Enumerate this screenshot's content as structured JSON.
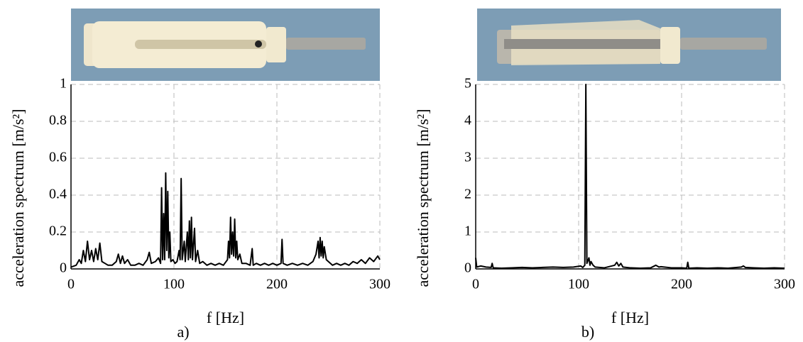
{
  "chart_data": [
    {
      "type": "line",
      "label": "a)",
      "xlabel": "f [Hz]",
      "ylabel": "acceleration spectrum [m/s²]",
      "xlim": [
        0,
        300
      ],
      "ylim": [
        0,
        1
      ],
      "xticks": [
        0,
        100,
        200,
        300
      ],
      "yticks": [
        0,
        0.2,
        0.4,
        0.6,
        0.8,
        1
      ],
      "grid": true,
      "x": [
        0,
        5,
        8,
        10,
        12,
        14,
        16,
        18,
        20,
        22,
        24,
        26,
        28,
        30,
        33,
        36,
        40,
        44,
        46,
        48,
        50,
        52,
        55,
        58,
        62,
        66,
        70,
        74,
        76,
        78,
        82,
        85,
        87,
        88,
        89,
        90,
        91,
        92,
        93,
        94,
        95,
        96,
        97,
        99,
        101,
        103,
        105,
        106,
        107,
        108,
        110,
        111,
        113,
        114,
        115,
        116,
        117,
        118,
        120,
        121,
        123,
        125,
        128,
        132,
        136,
        140,
        144,
        148,
        152,
        153,
        154,
        155,
        156,
        157,
        158,
        159,
        160,
        161,
        162,
        164,
        166,
        170,
        174,
        176,
        177,
        180,
        184,
        188,
        192,
        196,
        200,
        204,
        205,
        206,
        210,
        215,
        220,
        225,
        230,
        235,
        238,
        240,
        241,
        242,
        243,
        244,
        245,
        246,
        248,
        250,
        254,
        258,
        262,
        266,
        270,
        274,
        278,
        282,
        286,
        290,
        294,
        298,
        300
      ],
      "series": [
        {
          "color": "#000000",
          "values": [
            0.01,
            0.02,
            0.05,
            0.03,
            0.1,
            0.04,
            0.15,
            0.05,
            0.1,
            0.04,
            0.11,
            0.05,
            0.14,
            0.04,
            0.03,
            0.02,
            0.02,
            0.04,
            0.08,
            0.03,
            0.07,
            0.03,
            0.05,
            0.02,
            0.02,
            0.03,
            0.02,
            0.05,
            0.09,
            0.03,
            0.04,
            0.06,
            0.03,
            0.44,
            0.05,
            0.3,
            0.05,
            0.52,
            0.1,
            0.42,
            0.06,
            0.2,
            0.04,
            0.05,
            0.03,
            0.04,
            0.1,
            0.05,
            0.49,
            0.05,
            0.15,
            0.04,
            0.2,
            0.05,
            0.26,
            0.06,
            0.28,
            0.05,
            0.22,
            0.04,
            0.1,
            0.03,
            0.04,
            0.02,
            0.03,
            0.02,
            0.03,
            0.02,
            0.05,
            0.15,
            0.06,
            0.28,
            0.08,
            0.2,
            0.07,
            0.27,
            0.06,
            0.15,
            0.05,
            0.08,
            0.03,
            0.03,
            0.02,
            0.11,
            0.02,
            0.03,
            0.02,
            0.03,
            0.02,
            0.03,
            0.02,
            0.03,
            0.16,
            0.03,
            0.02,
            0.03,
            0.02,
            0.03,
            0.02,
            0.04,
            0.08,
            0.15,
            0.06,
            0.17,
            0.07,
            0.15,
            0.06,
            0.12,
            0.05,
            0.04,
            0.02,
            0.03,
            0.02,
            0.03,
            0.02,
            0.04,
            0.03,
            0.05,
            0.03,
            0.06,
            0.04,
            0.07,
            0.05
          ]
        }
      ]
    },
    {
      "type": "line",
      "label": "b)",
      "xlabel": "f [Hz]",
      "ylabel": "acceleration spectrum [m/s²]",
      "xlim": [
        0,
        300
      ],
      "ylim": [
        0,
        5
      ],
      "xticks": [
        0,
        100,
        200,
        300
      ],
      "yticks": [
        0,
        1,
        2,
        3,
        4,
        5
      ],
      "grid": true,
      "x": [
        0,
        1,
        5,
        10,
        15,
        16,
        17,
        25,
        35,
        45,
        55,
        65,
        75,
        85,
        95,
        102,
        104,
        106,
        107,
        108,
        110,
        111,
        112,
        114,
        116,
        125,
        135,
        137,
        139,
        141,
        143,
        150,
        160,
        170,
        175,
        178,
        180,
        190,
        200,
        205,
        206,
        207,
        215,
        225,
        235,
        245,
        258,
        260,
        262,
        270,
        280,
        290,
        300
      ],
      "series": [
        {
          "color": "#000000",
          "values": [
            0.3,
            0.05,
            0.08,
            0.05,
            0.04,
            0.15,
            0.03,
            0.02,
            0.03,
            0.04,
            0.03,
            0.04,
            0.05,
            0.04,
            0.05,
            0.08,
            0.04,
            0.1,
            5.0,
            0.15,
            0.3,
            0.1,
            0.2,
            0.1,
            0.05,
            0.03,
            0.1,
            0.18,
            0.08,
            0.15,
            0.05,
            0.03,
            0.02,
            0.03,
            0.1,
            0.05,
            0.06,
            0.03,
            0.03,
            0.02,
            0.18,
            0.02,
            0.03,
            0.02,
            0.03,
            0.02,
            0.05,
            0.08,
            0.04,
            0.03,
            0.02,
            0.03,
            0.02
          ]
        }
      ]
    }
  ]
}
